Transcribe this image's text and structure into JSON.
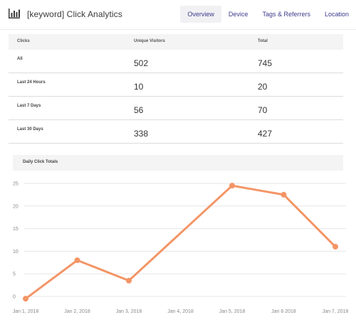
{
  "header": {
    "title": "[keyword] Click Analytics",
    "logo_icon": "bar-chart-icon",
    "nav": [
      "Overview",
      "Device",
      "Tags & Referrers",
      "Location"
    ],
    "active_nav": "Overview"
  },
  "table": {
    "columns": [
      "Clicks",
      "Unique Visitors",
      "Total"
    ],
    "rows": [
      {
        "label": "All",
        "unique": "502",
        "total": "745"
      },
      {
        "label": "Last 24 Hours",
        "unique": "10",
        "total": "20"
      },
      {
        "label": "Last 7 Days",
        "unique": "56",
        "total": "70"
      },
      {
        "label": "Last 30 Days",
        "unique": "338",
        "total": "427"
      }
    ]
  },
  "chart_title": "Daily Click Totals",
  "chart_data": {
    "type": "line",
    "x": [
      "Jan 1, 2018",
      "Jan 2, 2018",
      "Jan 3, 2018",
      "Jan 4, 2018",
      "Jan 5, 2018",
      "Jan 6 2018",
      "Jan 7, 2018"
    ],
    "series": [
      {
        "points": [
          {
            "x": "Jan 1, 2018",
            "y": -0.5
          },
          {
            "x": "Jan 2, 2018",
            "y": 8
          },
          {
            "x": "Jan 3, 2018",
            "y": 3.5
          },
          {
            "x": "Jan 5, 2018",
            "y": 24.5
          },
          {
            "x": "Jan 6 2018",
            "y": 22.5
          },
          {
            "x": "Jan 7, 2018",
            "y": 11
          }
        ]
      }
    ],
    "yticks": [
      0,
      5,
      10,
      15,
      20,
      25
    ],
    "ylim": [
      0,
      25
    ],
    "grid": true,
    "color": "#f39566"
  }
}
